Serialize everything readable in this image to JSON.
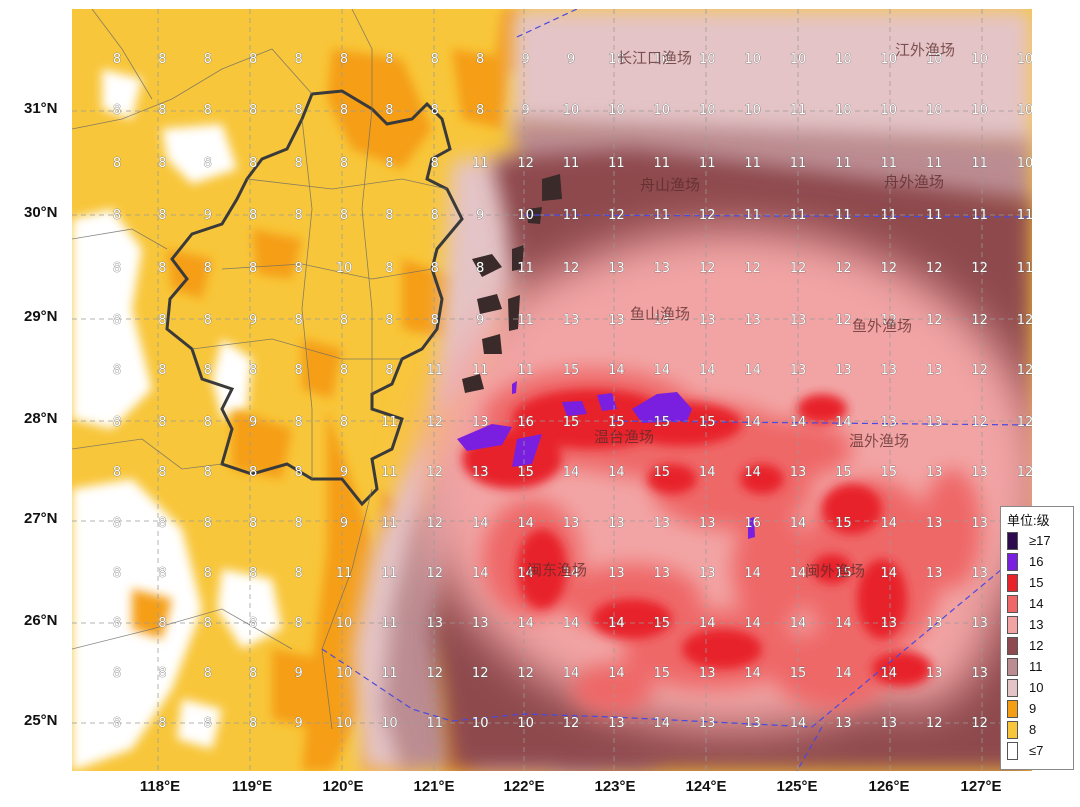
{
  "lat_labels": [
    "31°N",
    "30°N",
    "29°N",
    "28°N",
    "27°N",
    "26°N",
    "25°N"
  ],
  "lon_labels": [
    "118°E",
    "119°E",
    "120°E",
    "121°E",
    "122°E",
    "123°E",
    "124°E",
    "125°E",
    "126°E",
    "127°E"
  ],
  "fishing_areas": [
    "长江口渔场",
    "江外渔场",
    "舟山渔场",
    "舟外渔场",
    "鱼山渔场",
    "鱼外渔场",
    "温台渔场",
    "温外渔场",
    "闽东渔场",
    "闽外渔场"
  ],
  "legend": {
    "title": "单位:级",
    "items": [
      {
        "label": "≥17",
        "color": "#2e0a4e"
      },
      {
        "label": "16",
        "color": "#7a1fe0"
      },
      {
        "label": "15",
        "color": "#e8242a"
      },
      {
        "label": "14",
        "color": "#ef6767"
      },
      {
        "label": "13",
        "color": "#f2a4a4"
      },
      {
        "label": "12",
        "color": "#8e4a4e"
      },
      {
        "label": "11",
        "color": "#bb8c92"
      },
      {
        "label": "10",
        "color": "#e4c4c6"
      },
      {
        "label": "9",
        "color": "#f59e14"
      },
      {
        "label": "8",
        "color": "#f8c63a"
      },
      {
        "label": "≤7",
        "color": "#ffffff"
      }
    ]
  },
  "grid_values": [
    [
      "8",
      "8",
      "8",
      "8",
      "8",
      "8",
      "8",
      "8",
      "8",
      "9",
      "9",
      "10",
      "10",
      "10",
      "10",
      "10",
      "10",
      "10",
      "10",
      "10",
      "10"
    ],
    [
      "8",
      "8",
      "8",
      "8",
      "8",
      "8",
      "8",
      "8",
      "8",
      "9",
      "10",
      "10",
      "10",
      "10",
      "10",
      "11",
      "10",
      "10",
      "10",
      "10",
      "10"
    ],
    [
      "8",
      "8",
      "8",
      "8",
      "8",
      "8",
      "8",
      "8",
      "11",
      "12",
      "11",
      "11",
      "11",
      "11",
      "11",
      "11",
      "11",
      "11",
      "11",
      "11",
      "10"
    ],
    [
      "8",
      "8",
      "9",
      "8",
      "8",
      "8",
      "8",
      "8",
      "9",
      "10",
      "11",
      "12",
      "11",
      "12",
      "11",
      "11",
      "11",
      "11",
      "11",
      "11",
      "11"
    ],
    [
      "8",
      "8",
      "8",
      "8",
      "8",
      "10",
      "8",
      "8",
      "8",
      "11",
      "12",
      "13",
      "13",
      "12",
      "12",
      "12",
      "12",
      "12",
      "12",
      "12",
      "11"
    ],
    [
      "8",
      "8",
      "8",
      "9",
      "8",
      "8",
      "8",
      "8",
      "9",
      "11",
      "13",
      "13",
      "13",
      "13",
      "13",
      "13",
      "12",
      "12",
      "12",
      "12",
      "12"
    ],
    [
      "8",
      "8",
      "8",
      "8",
      "8",
      "8",
      "8",
      "11",
      "11",
      "11",
      "15",
      "14",
      "14",
      "14",
      "14",
      "13",
      "13",
      "13",
      "13",
      "12",
      "12"
    ],
    [
      "8",
      "8",
      "8",
      "9",
      "8",
      "8",
      "11",
      "12",
      "13",
      "16",
      "15",
      "15",
      "15",
      "15",
      "14",
      "14",
      "14",
      "13",
      "13",
      "12",
      "12"
    ],
    [
      "8",
      "8",
      "8",
      "8",
      "8",
      "9",
      "11",
      "12",
      "13",
      "15",
      "14",
      "14",
      "15",
      "14",
      "14",
      "13",
      "15",
      "15",
      "13",
      "13",
      "12"
    ],
    [
      "8",
      "8",
      "8",
      "8",
      "8",
      "9",
      "11",
      "12",
      "14",
      "14",
      "13",
      "13",
      "13",
      "13",
      "16",
      "14",
      "15",
      "14",
      "13",
      "13",
      "12"
    ],
    [
      "8",
      "8",
      "8",
      "8",
      "8",
      "11",
      "11",
      "12",
      "14",
      "14",
      "14",
      "13",
      "13",
      "13",
      "14",
      "14",
      "15",
      "14",
      "13",
      "13",
      "12"
    ],
    [
      "8",
      "8",
      "8",
      "8",
      "8",
      "10",
      "11",
      "13",
      "13",
      "14",
      "14",
      "14",
      "15",
      "14",
      "14",
      "14",
      "14",
      "13",
      "13",
      "13",
      "12"
    ],
    [
      "8",
      "8",
      "8",
      "8",
      "9",
      "10",
      "11",
      "12",
      "12",
      "12",
      "14",
      "14",
      "15",
      "13",
      "14",
      "15",
      "14",
      "14",
      "13",
      "13",
      "12"
    ],
    [
      "8",
      "8",
      "8",
      "8",
      "9",
      "10",
      "10",
      "11",
      "10",
      "10",
      "12",
      "13",
      "14",
      "13",
      "13",
      "14",
      "13",
      "13",
      "12",
      "12",
      "12"
    ]
  ]
}
